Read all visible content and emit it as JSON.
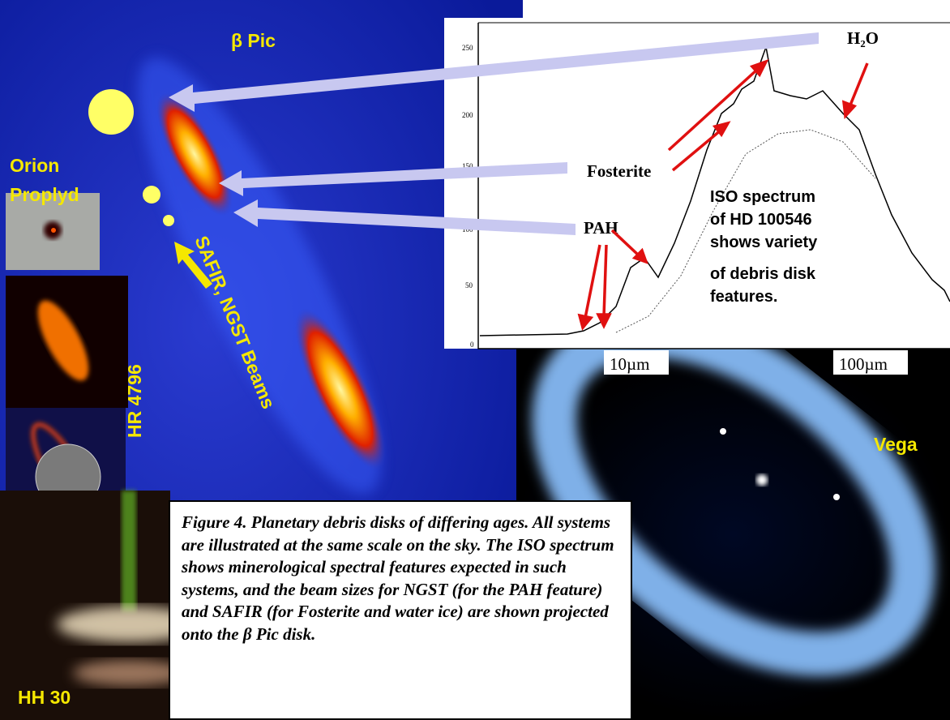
{
  "labels": {
    "beta_pic": "β Pic",
    "orion": "Orion",
    "proplyd": "Proplyd",
    "hr4796": "HR 4796",
    "beams": "SAFIR, NGST Beams",
    "hh30": "HH 30",
    "vega": "Vega"
  },
  "spectrum": {
    "h2o": "H₂O",
    "fosterite": "Fosterite",
    "pah": "PAH",
    "y_tick_labels": [
      "250",
      "200",
      "150",
      "100",
      "50",
      "0"
    ],
    "x_tick_labels": [
      "10µm",
      "100µm"
    ],
    "note_lines": [
      "ISO spectrum",
      "of HD 100546",
      "shows variety",
      "of debris disk",
      "features."
    ]
  },
  "caption": "Figure 4. Planetary debris disks of differing ages. All systems are illustrated at the same scale on the sky. The ISO spectrum shows minerological spectral features expected in such systems, and the beam sizes for NGST (for the PAH feature) and SAFIR (for Fosterite and water ice) are shown projected onto the β Pic disk."
}
